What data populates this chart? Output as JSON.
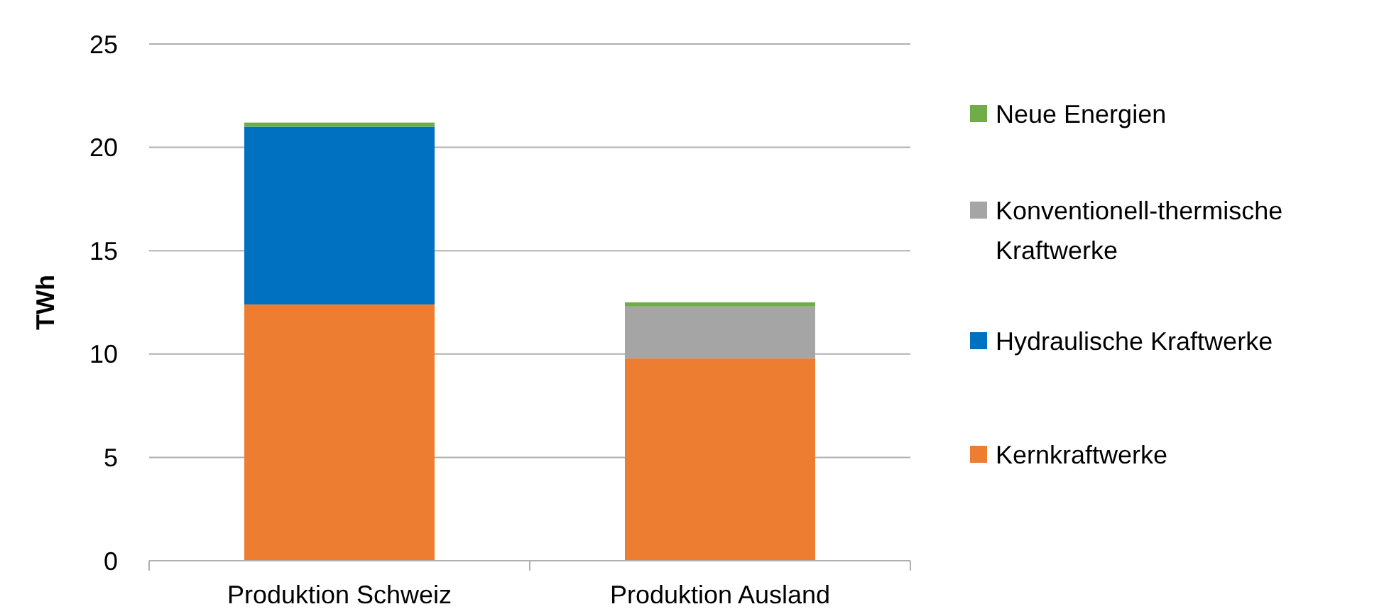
{
  "chart_data": {
    "type": "bar",
    "stacked": true,
    "ylabel": "TWh",
    "categories": [
      "Produktion Schweiz",
      "Produktion Ausland"
    ],
    "series": [
      {
        "name": "Kernkraftwerke",
        "color": "#ed7d31",
        "values": [
          12.4,
          9.8
        ]
      },
      {
        "name": "Hydraulische Kraftwerke",
        "color": "#0070c0",
        "values": [
          8.6,
          0
        ]
      },
      {
        "name": "Konventionell-thermische Kraftwerke",
        "color": "#a5a5a5",
        "values": [
          0,
          2.5
        ]
      },
      {
        "name": "Neue Energien",
        "color": "#70ad47",
        "values": [
          0.2,
          0.2
        ]
      }
    ],
    "ylim": [
      0,
      25
    ],
    "yticks": [
      0,
      5,
      10,
      15,
      20,
      25
    ],
    "grid": "y",
    "legend": "right"
  }
}
